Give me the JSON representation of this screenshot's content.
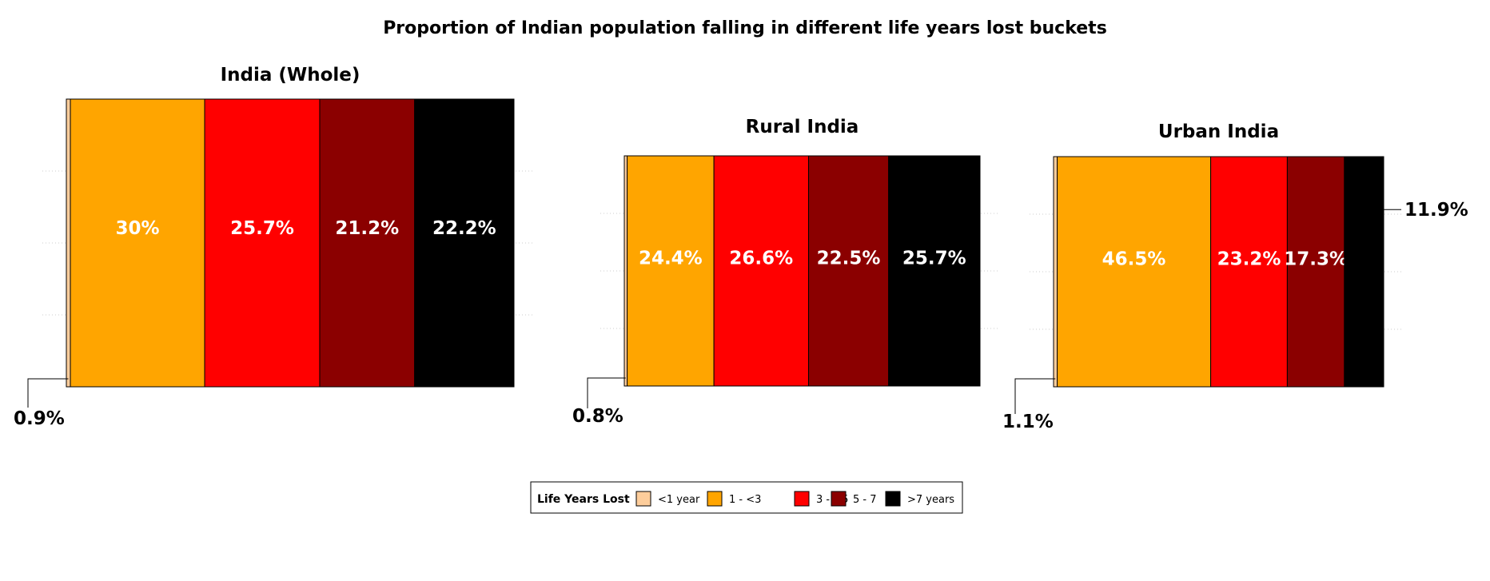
{
  "chart_data": {
    "type": "bar",
    "title": "Proportion of Indian population falling in different life years lost buckets",
    "stacked": true,
    "orientation": "horizontal",
    "value_unit": "%",
    "legend": {
      "title": "Life Years Lost",
      "placement": "bottom-center",
      "entries": [
        {
          "label": "<1 year",
          "color": "#FDCD9B"
        },
        {
          "label": "1 - <3",
          "color": "#FFA500"
        },
        {
          "label": "3 - <5",
          "color": "#FF0000"
        },
        {
          "label": "5 - 7",
          "color": "#8B0000"
        },
        {
          "label": ">7 years",
          "color": "#000000"
        }
      ]
    },
    "panels": [
      {
        "title": "India (Whole)",
        "values": [
          0.9,
          30,
          25.7,
          21.2,
          22.2
        ],
        "labels": [
          "0.9%",
          "30%",
          "25.7%",
          "21.2%",
          "22.2%"
        ]
      },
      {
        "title": "Rural India",
        "values": [
          0.8,
          24.4,
          26.6,
          22.5,
          25.7
        ],
        "labels": [
          "0.8%",
          "24.4%",
          "26.6%",
          "22.5%",
          "25.7%"
        ]
      },
      {
        "title": "Urban India",
        "values": [
          1.1,
          46.5,
          23.2,
          17.3,
          11.9
        ],
        "labels": [
          "1.1%",
          "46.5%",
          "23.2%",
          "17.3%",
          "11.9%"
        ]
      }
    ]
  }
}
